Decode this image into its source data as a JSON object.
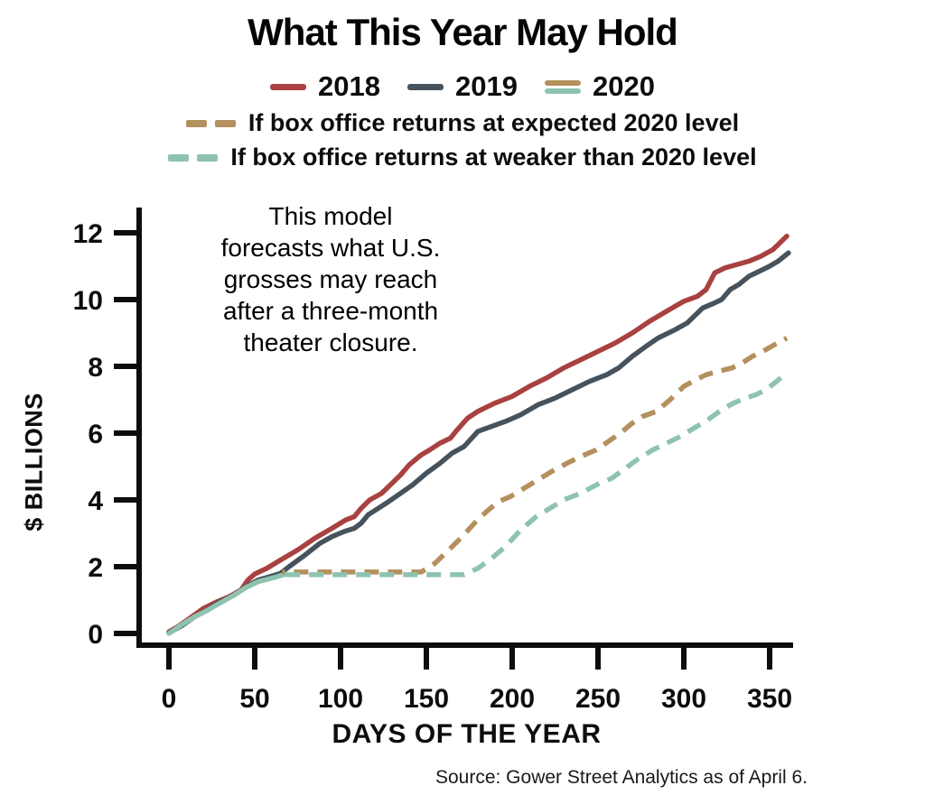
{
  "title": "What This Year May Hold",
  "annotation": {
    "lines": [
      "This model",
      "forecasts what U.S.",
      "grosses may reach",
      "after a three-month",
      "theater closure."
    ]
  },
  "source": "Source: Gower Street Analytics as of April 6.",
  "legend": {
    "solid": [
      {
        "label": "2018",
        "color": "#a84140"
      },
      {
        "label": "2019",
        "color": "#46525c"
      },
      {
        "label": "2020",
        "colors": [
          "#b3905d",
          "#8ec3b0"
        ]
      }
    ],
    "dashed": [
      {
        "label": "If box office returns at expected 2020 level",
        "color": "#b3905d"
      },
      {
        "label": "If box office returns at weaker than 2020 level",
        "color": "#8ec3b0"
      }
    ]
  },
  "chart_data": {
    "type": "line",
    "title": "What This Year May Hold",
    "xlabel": "DAYS OF THE YEAR",
    "ylabel": "$ BILLIONS",
    "xlim": [
      0,
      364
    ],
    "ylim": [
      0,
      12.5
    ],
    "x_ticks": [
      0,
      50,
      100,
      150,
      200,
      250,
      300,
      350
    ],
    "y_ticks": [
      0,
      2,
      4,
      6,
      8,
      10,
      12
    ],
    "grid": false,
    "legend_position": "top",
    "units": "US box office cumulative gross, $ billions vs day of year",
    "series": [
      {
        "name": "2018",
        "color": "#a84140",
        "style": "solid",
        "points": [
          [
            0,
            0.05
          ],
          [
            5,
            0.2
          ],
          [
            12,
            0.45
          ],
          [
            20,
            0.75
          ],
          [
            28,
            0.95
          ],
          [
            35,
            1.1
          ],
          [
            42,
            1.3
          ],
          [
            46,
            1.6
          ],
          [
            50,
            1.78
          ],
          [
            57,
            1.95
          ],
          [
            65,
            2.2
          ],
          [
            75,
            2.5
          ],
          [
            85,
            2.85
          ],
          [
            95,
            3.15
          ],
          [
            103,
            3.4
          ],
          [
            108,
            3.5
          ],
          [
            112,
            3.75
          ],
          [
            117,
            4.0
          ],
          [
            124,
            4.2
          ],
          [
            128,
            4.4
          ],
          [
            135,
            4.75
          ],
          [
            140,
            5.05
          ],
          [
            147,
            5.35
          ],
          [
            152,
            5.5
          ],
          [
            158,
            5.7
          ],
          [
            164,
            5.85
          ],
          [
            168,
            6.1
          ],
          [
            174,
            6.45
          ],
          [
            180,
            6.65
          ],
          [
            190,
            6.9
          ],
          [
            200,
            7.1
          ],
          [
            210,
            7.4
          ],
          [
            220,
            7.65
          ],
          [
            230,
            7.95
          ],
          [
            240,
            8.2
          ],
          [
            250,
            8.45
          ],
          [
            260,
            8.7
          ],
          [
            270,
            9.0
          ],
          [
            280,
            9.35
          ],
          [
            290,
            9.65
          ],
          [
            300,
            9.95
          ],
          [
            308,
            10.1
          ],
          [
            313,
            10.3
          ],
          [
            318,
            10.8
          ],
          [
            324,
            10.95
          ],
          [
            331,
            11.05
          ],
          [
            338,
            11.15
          ],
          [
            345,
            11.3
          ],
          [
            352,
            11.5
          ],
          [
            360,
            11.9
          ]
        ]
      },
      {
        "name": "2019",
        "color": "#46525c",
        "style": "solid",
        "points": [
          [
            0,
            0.02
          ],
          [
            8,
            0.25
          ],
          [
            15,
            0.5
          ],
          [
            22,
            0.7
          ],
          [
            30,
            0.95
          ],
          [
            38,
            1.15
          ],
          [
            45,
            1.4
          ],
          [
            52,
            1.6
          ],
          [
            60,
            1.72
          ],
          [
            65,
            1.8
          ],
          [
            70,
            2.0
          ],
          [
            78,
            2.3
          ],
          [
            88,
            2.7
          ],
          [
            95,
            2.9
          ],
          [
            102,
            3.05
          ],
          [
            108,
            3.15
          ],
          [
            112,
            3.3
          ],
          [
            116,
            3.55
          ],
          [
            122,
            3.75
          ],
          [
            128,
            3.95
          ],
          [
            135,
            4.2
          ],
          [
            142,
            4.45
          ],
          [
            150,
            4.8
          ],
          [
            158,
            5.1
          ],
          [
            165,
            5.4
          ],
          [
            172,
            5.6
          ],
          [
            180,
            6.05
          ],
          [
            188,
            6.2
          ],
          [
            196,
            6.35
          ],
          [
            205,
            6.55
          ],
          [
            215,
            6.85
          ],
          [
            225,
            7.05
          ],
          [
            235,
            7.3
          ],
          [
            245,
            7.55
          ],
          [
            255,
            7.75
          ],
          [
            262,
            7.95
          ],
          [
            270,
            8.3
          ],
          [
            278,
            8.6
          ],
          [
            285,
            8.85
          ],
          [
            295,
            9.1
          ],
          [
            302,
            9.3
          ],
          [
            311,
            9.75
          ],
          [
            318,
            9.9
          ],
          [
            322,
            10.0
          ],
          [
            327,
            10.3
          ],
          [
            332,
            10.45
          ],
          [
            338,
            10.7
          ],
          [
            344,
            10.85
          ],
          [
            350,
            11.0
          ],
          [
            355,
            11.15
          ],
          [
            361,
            11.4
          ]
        ]
      },
      {
        "name": "2020",
        "color": "#8ec3b0",
        "style": "solid",
        "points": [
          [
            0,
            0.0
          ],
          [
            8,
            0.28
          ],
          [
            15,
            0.5
          ],
          [
            22,
            0.68
          ],
          [
            30,
            0.92
          ],
          [
            38,
            1.15
          ],
          [
            45,
            1.38
          ],
          [
            52,
            1.55
          ],
          [
            58,
            1.63
          ],
          [
            63,
            1.7
          ],
          [
            68,
            1.78
          ]
        ]
      },
      {
        "name": "If box office returns at expected 2020 level",
        "color": "#b3905d",
        "style": "dashed",
        "dash_offset": 13,
        "points": [
          [
            66,
            1.84
          ],
          [
            147,
            1.84
          ],
          [
            155,
            2.1
          ],
          [
            163,
            2.5
          ],
          [
            170,
            2.85
          ],
          [
            178,
            3.3
          ],
          [
            185,
            3.65
          ],
          [
            192,
            3.95
          ],
          [
            199,
            4.1
          ],
          [
            207,
            4.35
          ],
          [
            215,
            4.6
          ],
          [
            223,
            4.85
          ],
          [
            232,
            5.1
          ],
          [
            240,
            5.3
          ],
          [
            249,
            5.5
          ],
          [
            256,
            5.75
          ],
          [
            263,
            6.0
          ],
          [
            270,
            6.3
          ],
          [
            276,
            6.5
          ],
          [
            284,
            6.65
          ],
          [
            292,
            7.0
          ],
          [
            300,
            7.4
          ],
          [
            307,
            7.6
          ],
          [
            313,
            7.75
          ],
          [
            320,
            7.85
          ],
          [
            328,
            7.95
          ],
          [
            334,
            8.1
          ],
          [
            340,
            8.3
          ],
          [
            346,
            8.45
          ],
          [
            353,
            8.65
          ],
          [
            360,
            8.85
          ]
        ]
      },
      {
        "name": "If box office returns at weaker than 2020 level",
        "color": "#8ec3b0",
        "style": "dashed",
        "dash_offset": 0,
        "points": [
          [
            68,
            1.76
          ],
          [
            172,
            1.76
          ],
          [
            180,
            1.95
          ],
          [
            188,
            2.25
          ],
          [
            196,
            2.6
          ],
          [
            205,
            3.1
          ],
          [
            214,
            3.5
          ],
          [
            222,
            3.75
          ],
          [
            230,
            4.0
          ],
          [
            240,
            4.2
          ],
          [
            249,
            4.45
          ],
          [
            258,
            4.65
          ],
          [
            266,
            4.95
          ],
          [
            274,
            5.25
          ],
          [
            282,
            5.5
          ],
          [
            290,
            5.7
          ],
          [
            298,
            5.9
          ],
          [
            306,
            6.15
          ],
          [
            314,
            6.4
          ],
          [
            322,
            6.7
          ],
          [
            329,
            6.9
          ],
          [
            336,
            7.05
          ],
          [
            342,
            7.15
          ],
          [
            348,
            7.3
          ],
          [
            354,
            7.55
          ],
          [
            360,
            7.8
          ]
        ]
      }
    ]
  }
}
